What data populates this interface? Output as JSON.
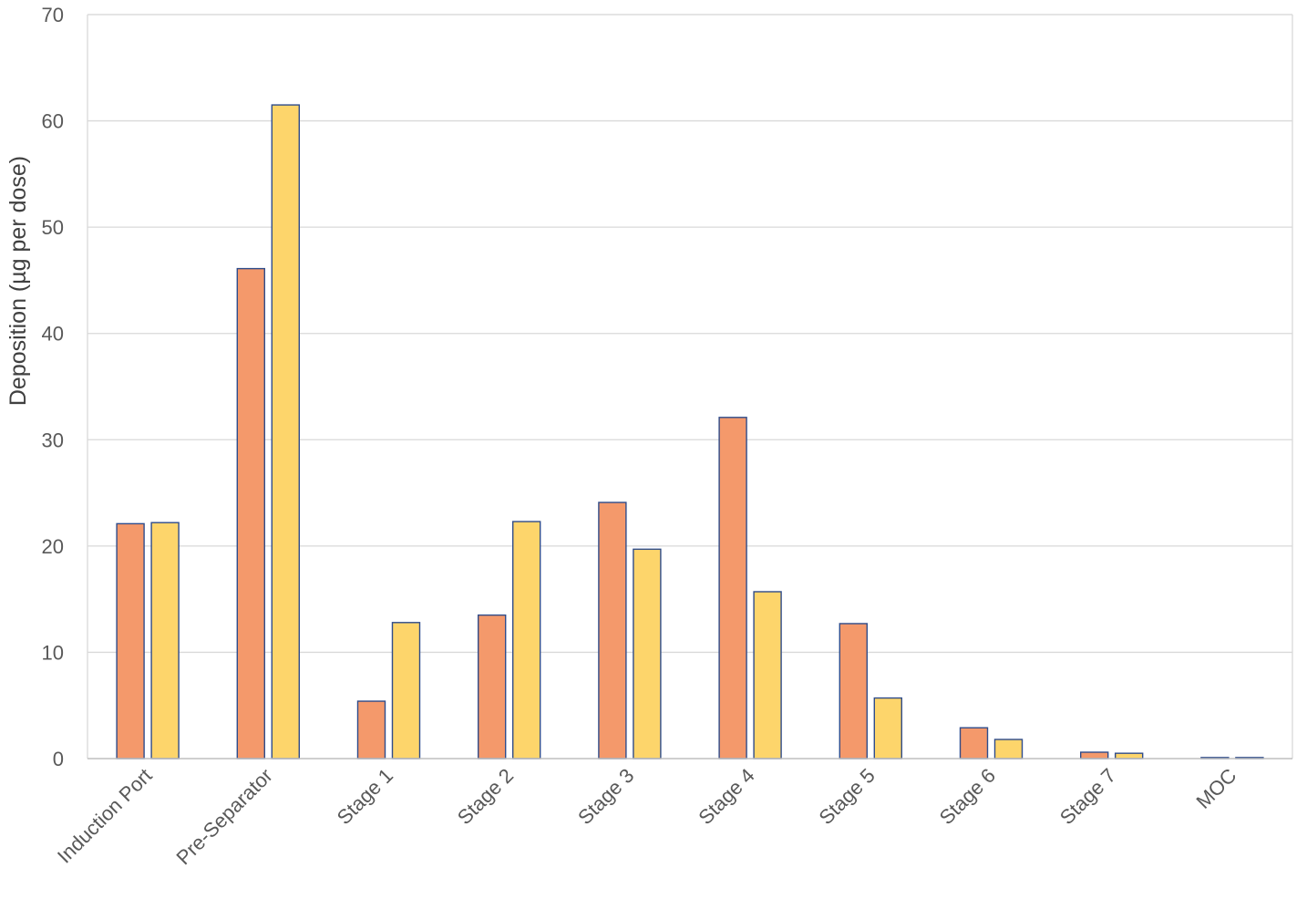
{
  "chart_data": {
    "type": "bar",
    "title": "",
    "xlabel": "",
    "ylabel": "Deposition (µg per dose)",
    "ylim": [
      0,
      70
    ],
    "yticks": [
      0,
      10,
      20,
      30,
      40,
      50,
      60,
      70
    ],
    "grid": true,
    "legend": "none",
    "categories": [
      "Induction Port",
      "Pre-Separator",
      "Stage 1",
      "Stage 2",
      "Stage 3",
      "Stage 4",
      "Stage 5",
      "Stage 6",
      "Stage 7",
      "MOC"
    ],
    "series": [
      {
        "color": "#F4996B",
        "values": [
          22.1,
          46.1,
          5.4,
          13.5,
          24.1,
          32.1,
          12.7,
          2.9,
          0.6,
          0.1
        ]
      },
      {
        "color": "#FDD56B",
        "values": [
          22.2,
          61.5,
          12.8,
          22.3,
          19.7,
          15.7,
          5.7,
          1.8,
          0.5,
          0.1
        ]
      }
    ],
    "bar_outline_color": "#2F4C8A",
    "grid_color": "#D9D9D9"
  }
}
